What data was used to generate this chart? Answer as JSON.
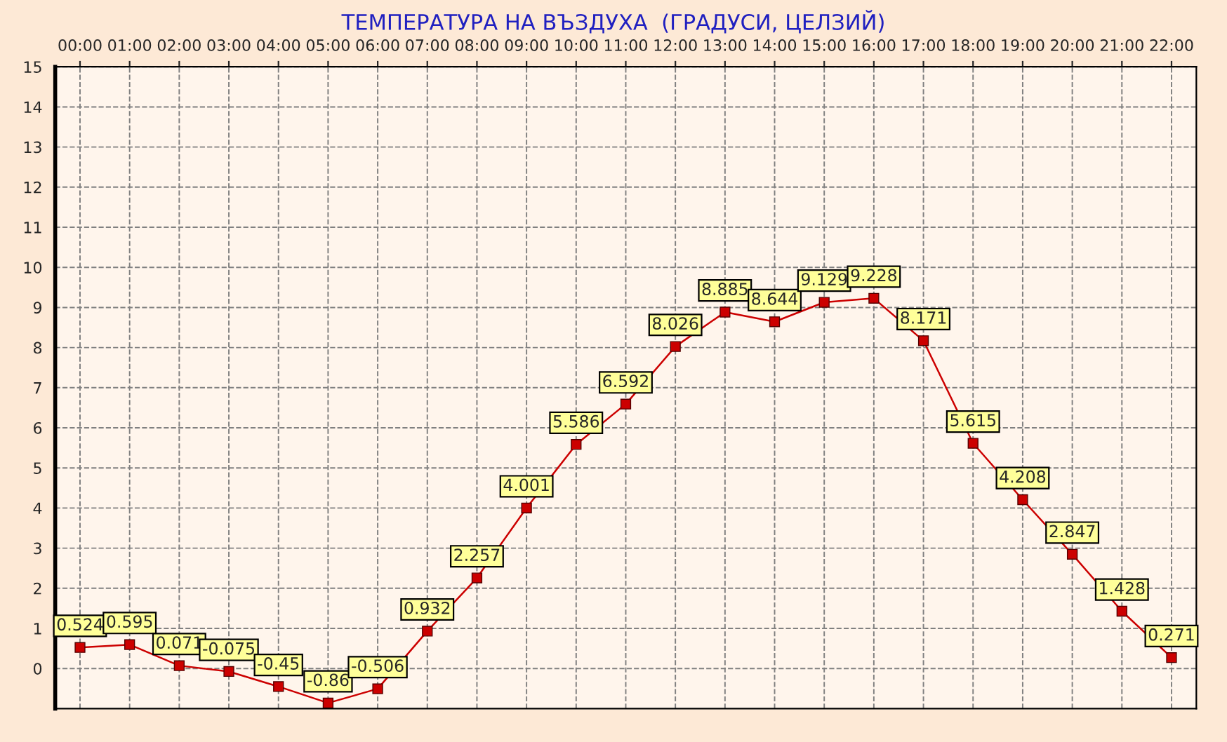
{
  "chart_data": {
    "type": "line",
    "title": "ТЕМПЕРАТУРА НА ВЪЗДУХА  (ГРАДУСИ, ЦЕЛЗИЙ)",
    "categories": [
      "00:00",
      "01:00",
      "02:00",
      "03:00",
      "04:00",
      "05:00",
      "06:00",
      "07:00",
      "08:00",
      "09:00",
      "10:00",
      "11:00",
      "12:00",
      "13:00",
      "14:00",
      "15:00",
      "16:00",
      "17:00",
      "18:00",
      "19:00",
      "20:00",
      "21:00",
      "22:00"
    ],
    "series": [
      {
        "color": "#cc0000",
        "values": [
          0.524,
          0.595,
          0.071,
          -0.075,
          -0.45,
          -0.86,
          -0.506,
          0.932,
          2.257,
          4.001,
          5.586,
          6.592,
          8.026,
          8.885,
          8.644,
          9.129,
          9.228,
          8.171,
          5.615,
          4.208,
          2.847,
          1.428,
          0.271
        ]
      }
    ],
    "ylim": [
      -1,
      15
    ],
    "yticks": [
      0,
      1,
      2,
      3,
      4,
      5,
      6,
      7,
      8,
      9,
      10,
      11,
      12,
      13,
      14,
      15
    ],
    "grid": true,
    "marker": "square",
    "line_style": "solid",
    "data_labels": true
  }
}
